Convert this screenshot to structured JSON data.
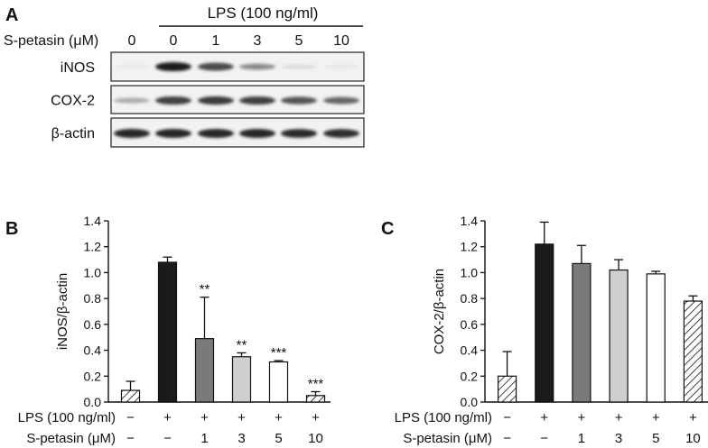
{
  "panel_a": {
    "label": "A",
    "treatment_header": "LPS (100 ng/ml)",
    "row_label": "S-petasin (μM)",
    "doses": [
      "0",
      "0",
      "1",
      "3",
      "5",
      "10"
    ],
    "blots": [
      {
        "label": "iNOS",
        "intensities": [
          0.02,
          0.95,
          0.75,
          0.45,
          0.08,
          0.03
        ]
      },
      {
        "label": "COX-2",
        "intensities": [
          0.3,
          0.8,
          0.82,
          0.8,
          0.7,
          0.62
        ]
      },
      {
        "label": "β-actin",
        "intensities": [
          0.92,
          0.92,
          0.92,
          0.92,
          0.9,
          0.88
        ]
      }
    ]
  },
  "chart_data": [
    {
      "type": "bar",
      "panel": "B",
      "title": "",
      "ylabel": "iNOS/β-actin",
      "ylim": [
        0,
        1.4
      ],
      "yticks": [
        "0.0",
        "0.2",
        "0.4",
        "0.6",
        "0.8",
        "1.0",
        "1.2",
        "1.4"
      ],
      "categories": [
        "1",
        "2",
        "3",
        "4",
        "5",
        "6"
      ],
      "values": [
        0.09,
        1.08,
        0.49,
        0.35,
        0.31,
        0.05
      ],
      "errors": [
        0.07,
        0.04,
        0.32,
        0.03,
        0.01,
        0.03
      ],
      "significance": [
        "",
        "",
        "**",
        "**",
        "***",
        "***"
      ],
      "fills": [
        "hatch",
        "#1a1a1a",
        "#7a7a7a",
        "#cfcfcf",
        "#ffffff",
        "hatch"
      ],
      "lps_label": "LPS (100 ng/ml)",
      "lps_row": [
        "−",
        "+",
        "+",
        "+",
        "+",
        "+"
      ],
      "dose_label": "S-petasin (μM)",
      "dose_row": [
        "−",
        "−",
        "1",
        "3",
        "5",
        "10"
      ]
    },
    {
      "type": "bar",
      "panel": "C",
      "title": "",
      "ylabel": "COX-2/β-actin",
      "ylim": [
        0,
        1.4
      ],
      "yticks": [
        "0.0",
        "0.2",
        "0.4",
        "0.6",
        "0.8",
        "1.0",
        "1.2",
        "1.4"
      ],
      "categories": [
        "1",
        "2",
        "3",
        "4",
        "5",
        "6"
      ],
      "values": [
        0.2,
        1.22,
        1.07,
        1.02,
        0.99,
        0.78
      ],
      "errors": [
        0.19,
        0.17,
        0.14,
        0.08,
        0.02,
        0.04
      ],
      "significance": [
        "",
        "",
        "",
        "",
        "",
        ""
      ],
      "fills": [
        "hatch",
        "#1a1a1a",
        "#7a7a7a",
        "#cfcfcf",
        "#ffffff",
        "hatch"
      ],
      "lps_label": "LPS (100 ng/ml)",
      "lps_row": [
        "−",
        "+",
        "+",
        "+",
        "+",
        "+"
      ],
      "dose_label": "S-petasin (μM)",
      "dose_row": [
        "−",
        "−",
        "1",
        "3",
        "5",
        "10"
      ]
    }
  ]
}
